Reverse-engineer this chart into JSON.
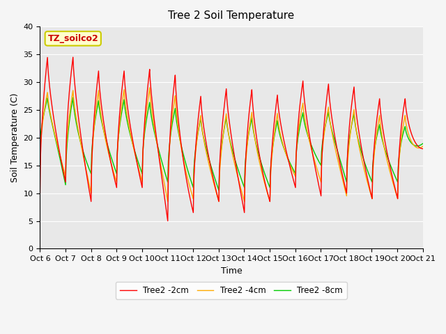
{
  "title": "Tree 2 Soil Temperature",
  "xlabel": "Time",
  "ylabel": "Soil Temperature (C)",
  "ylim": [
    0,
    40
  ],
  "annotation_text": "TZ_soilco2",
  "annotation_color": "#cc0000",
  "annotation_bg": "#ffffcc",
  "annotation_border": "#cccc00",
  "background_color": "#e8e8e8",
  "grid_color": "#ffffff",
  "line_colors": {
    "2cm": "#ff0000",
    "4cm": "#ffaa00",
    "8cm": "#00cc00"
  },
  "legend_labels": [
    "Tree2 -2cm",
    "Tree2 -4cm",
    "Tree2 -8cm"
  ],
  "x_tick_labels": [
    "Oct 6",
    "Oct 7",
    "Oct 8",
    "Oct 9",
    "Oct 10",
    "Oct 11",
    "Oct 12",
    "Oct 13",
    "Oct 14",
    "Oct 15",
    "Oct 16",
    "Oct 17",
    "Oct 18",
    "Oct 19",
    "Oct 20",
    "Oct 21"
  ],
  "title_fontsize": 11,
  "axis_label_fontsize": 9,
  "tick_fontsize": 8,
  "days": 15,
  "ppd": 48,
  "peaks_2cm": [
    34.0,
    35.5,
    32.0,
    32.0,
    32.0,
    33.0,
    27.0,
    28.5,
    29.5,
    26.5,
    30.5,
    29.5,
    30.0,
    27.0,
    27.0,
    27.0
  ],
  "troughs_2cm": [
    10.0,
    12.0,
    8.5,
    11.0,
    11.0,
    5.0,
    6.5,
    8.5,
    6.5,
    8.5,
    11.0,
    9.5,
    10.0,
    9.0,
    9.0,
    18.0
  ],
  "peaks_4cm": [
    28.0,
    28.5,
    28.5,
    28.5,
    29.0,
    29.0,
    24.0,
    24.0,
    25.0,
    23.5,
    26.5,
    25.5,
    25.5,
    24.0,
    24.0,
    24.0
  ],
  "troughs_4cm": [
    15.0,
    13.0,
    10.0,
    12.0,
    12.0,
    8.5,
    9.0,
    8.5,
    8.5,
    8.5,
    13.0,
    12.0,
    9.5,
    9.0,
    9.0,
    18.5
  ],
  "peaks_8cm": [
    27.0,
    27.5,
    26.5,
    27.0,
    26.5,
    26.0,
    23.5,
    23.5,
    24.0,
    22.5,
    24.5,
    24.5,
    25.0,
    22.5,
    22.0,
    22.0
  ],
  "troughs_8cm": [
    18.0,
    11.5,
    13.5,
    13.5,
    13.5,
    12.0,
    11.0,
    10.5,
    11.0,
    11.0,
    13.5,
    15.0,
    12.0,
    12.0,
    12.0,
    19.0
  ]
}
